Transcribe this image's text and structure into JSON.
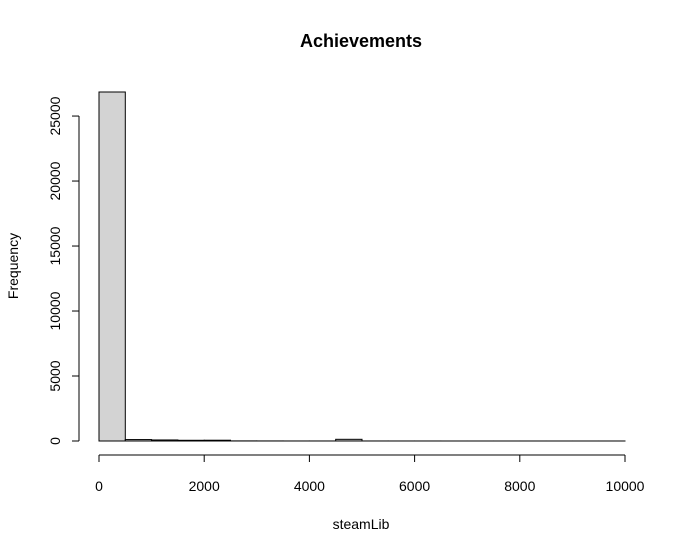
{
  "chart_data": {
    "type": "bar",
    "title": "Achievements",
    "xlabel": "steamLib",
    "ylabel": "Frequency",
    "bin_edges": [
      0,
      500,
      1000,
      1500,
      2000,
      2500,
      3000,
      3500,
      4000,
      4500,
      5000,
      5500,
      6000,
      6500,
      7000,
      7500,
      8000,
      8500,
      9000,
      9500,
      10000
    ],
    "values": [
      26850,
      110,
      80,
      55,
      60,
      8,
      5,
      3,
      3,
      130,
      3,
      2,
      2,
      1,
      1,
      1,
      1,
      1,
      1,
      1
    ],
    "xlim": [
      0,
      10000
    ],
    "ylim": [
      0,
      26850
    ],
    "x_ticks": [
      0,
      2000,
      4000,
      6000,
      8000,
      10000
    ],
    "y_ticks": [
      0,
      5000,
      10000,
      15000,
      20000,
      25000
    ],
    "grid": false,
    "bar_fill": "#d3d3d3",
    "bar_stroke": "#000000"
  }
}
